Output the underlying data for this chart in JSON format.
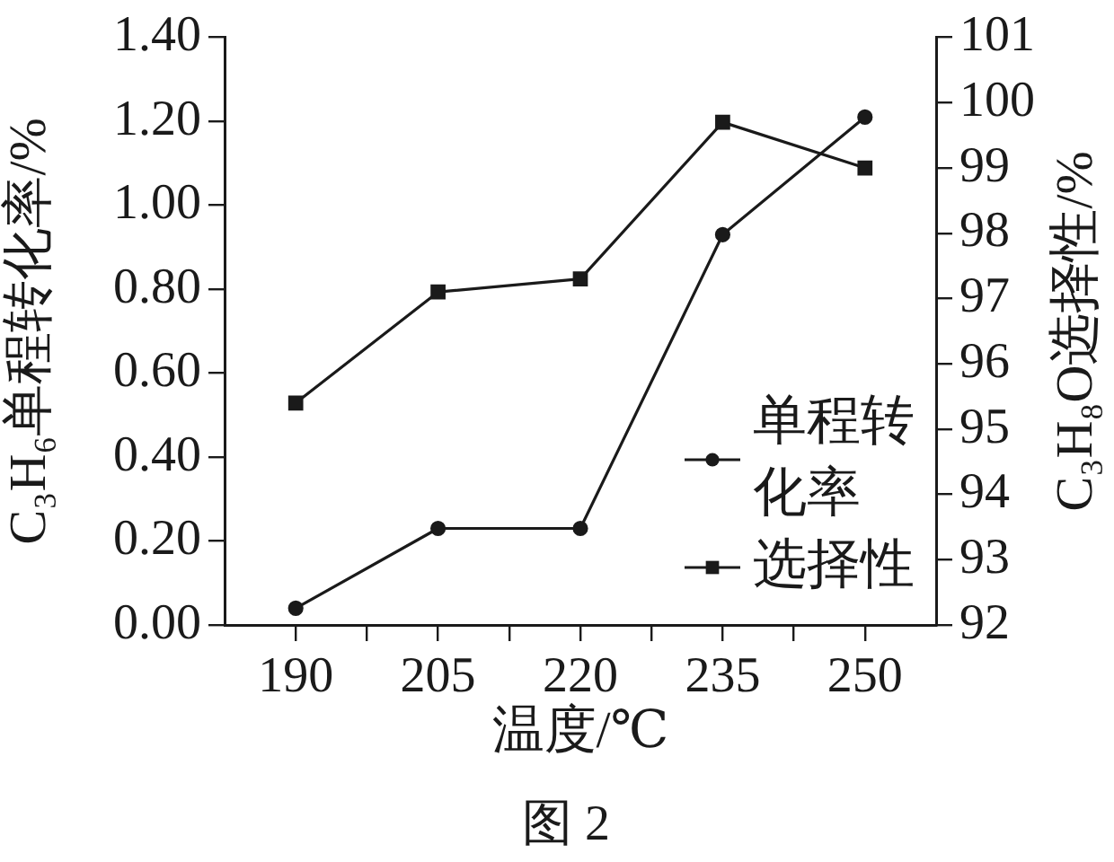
{
  "chart_data": {
    "type": "line",
    "xlabel": "温度/℃",
    "ylabel": "C₃H₆单程转化率/%",
    "y2label": "C₃H₈O选择性/%",
    "annotations": [
      "图 2"
    ],
    "x": [
      190,
      205,
      220,
      235,
      250
    ],
    "xlim": [
      182.5,
      257.5
    ],
    "xticks": [
      190,
      {
        "value": 197.5,
        "label": null
      },
      205,
      {
        "value": 212.5,
        "label": null
      },
      220,
      {
        "value": 227.5,
        "label": null
      },
      235,
      {
        "value": 242.5,
        "label": null
      },
      250
    ],
    "ylim": [
      0,
      1.4
    ],
    "yticks": [
      {
        "value": 0,
        "label": "0.00"
      },
      {
        "value": 0.2,
        "label": "0.20"
      },
      {
        "value": 0.4,
        "label": "0.40"
      },
      {
        "value": 0.6,
        "label": "0.60"
      },
      {
        "value": 0.8,
        "label": "0.80"
      },
      {
        "value": 1.0,
        "label": "1.00"
      },
      {
        "value": 1.2,
        "label": "1.20"
      },
      {
        "value": 1.4,
        "label": "1.40"
      }
    ],
    "y2lim": [
      92,
      101
    ],
    "y2ticks": [
      92,
      93,
      94,
      95,
      96,
      97,
      98,
      99,
      100,
      101
    ],
    "grid": false,
    "legend": "bottom right",
    "line_style": "solid",
    "series": [
      {
        "name": "单程转化率",
        "color": "#1a1a1a",
        "values": [
          0.04,
          0.23,
          0.23,
          0.93,
          1.21
        ],
        "marker": "circle"
      },
      {
        "name": "选择性",
        "color": "#1a1a1a",
        "values": [
          95.4,
          97.1,
          97.3,
          99.7,
          99.0
        ],
        "marker": "square",
        "axis": "y2"
      }
    ]
  }
}
